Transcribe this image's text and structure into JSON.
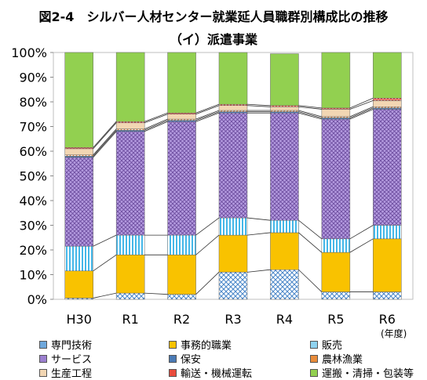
{
  "chart_data": {
    "type": "bar",
    "stacked": true,
    "title": "図2-4　シルバー人材センター就業延人員職群別構成比の推移",
    "subtitle": "（イ）派遣事業",
    "categories": [
      "H30",
      "R1",
      "R2",
      "R3",
      "R4",
      "R5",
      "R6"
    ],
    "x_unit": "(年度)",
    "ylim": [
      0,
      100
    ],
    "yticks": [
      "0%",
      "10%",
      "20%",
      "30%",
      "40%",
      "50%",
      "60%",
      "70%",
      "80%",
      "90%",
      "100%"
    ],
    "grid": false,
    "legend_position": "bottom",
    "series": [
      {
        "name": "専門技術",
        "color": "#6fa8dc",
        "values": [
          0.5,
          2.5,
          2.0,
          11.0,
          12.0,
          3.0,
          3.0
        ]
      },
      {
        "name": "事務的職業",
        "color": "#f9c200",
        "values": [
          11.0,
          15.5,
          16.0,
          15.0,
          15.0,
          16.0,
          21.5
        ]
      },
      {
        "name": "販売",
        "color": "#8fd3f0",
        "values": [
          10.0,
          8.0,
          8.0,
          7.0,
          5.0,
          5.5,
          5.5
        ]
      },
      {
        "name": "サービス",
        "color": "#9b7fcf",
        "values": [
          36.0,
          42.0,
          46.0,
          42.5,
          43.5,
          48.5,
          47.0
        ]
      },
      {
        "name": "保安",
        "color": "#4a7ab5",
        "values": [
          0.5,
          0.5,
          0.5,
          0.5,
          0.5,
          0.5,
          0.5
        ]
      },
      {
        "name": "農林漁業",
        "color": "#e88b3a",
        "values": [
          0.5,
          0.5,
          0.5,
          0.5,
          0.5,
          0.5,
          0.5
        ]
      },
      {
        "name": "生産工程",
        "color": "#f2d6b3",
        "values": [
          2.5,
          2.5,
          2.0,
          2.0,
          1.5,
          3.0,
          2.5
        ]
      },
      {
        "name": "輸送・機械運転",
        "color": "#e94b3c",
        "values": [
          0.5,
          0.5,
          0.5,
          0.5,
          0.5,
          0.5,
          1.0
        ]
      },
      {
        "name": "運搬・清掃・包装等",
        "color": "#92d050",
        "values": [
          38.5,
          28.0,
          24.5,
          21.0,
          21.0,
          22.5,
          18.5
        ]
      }
    ]
  }
}
